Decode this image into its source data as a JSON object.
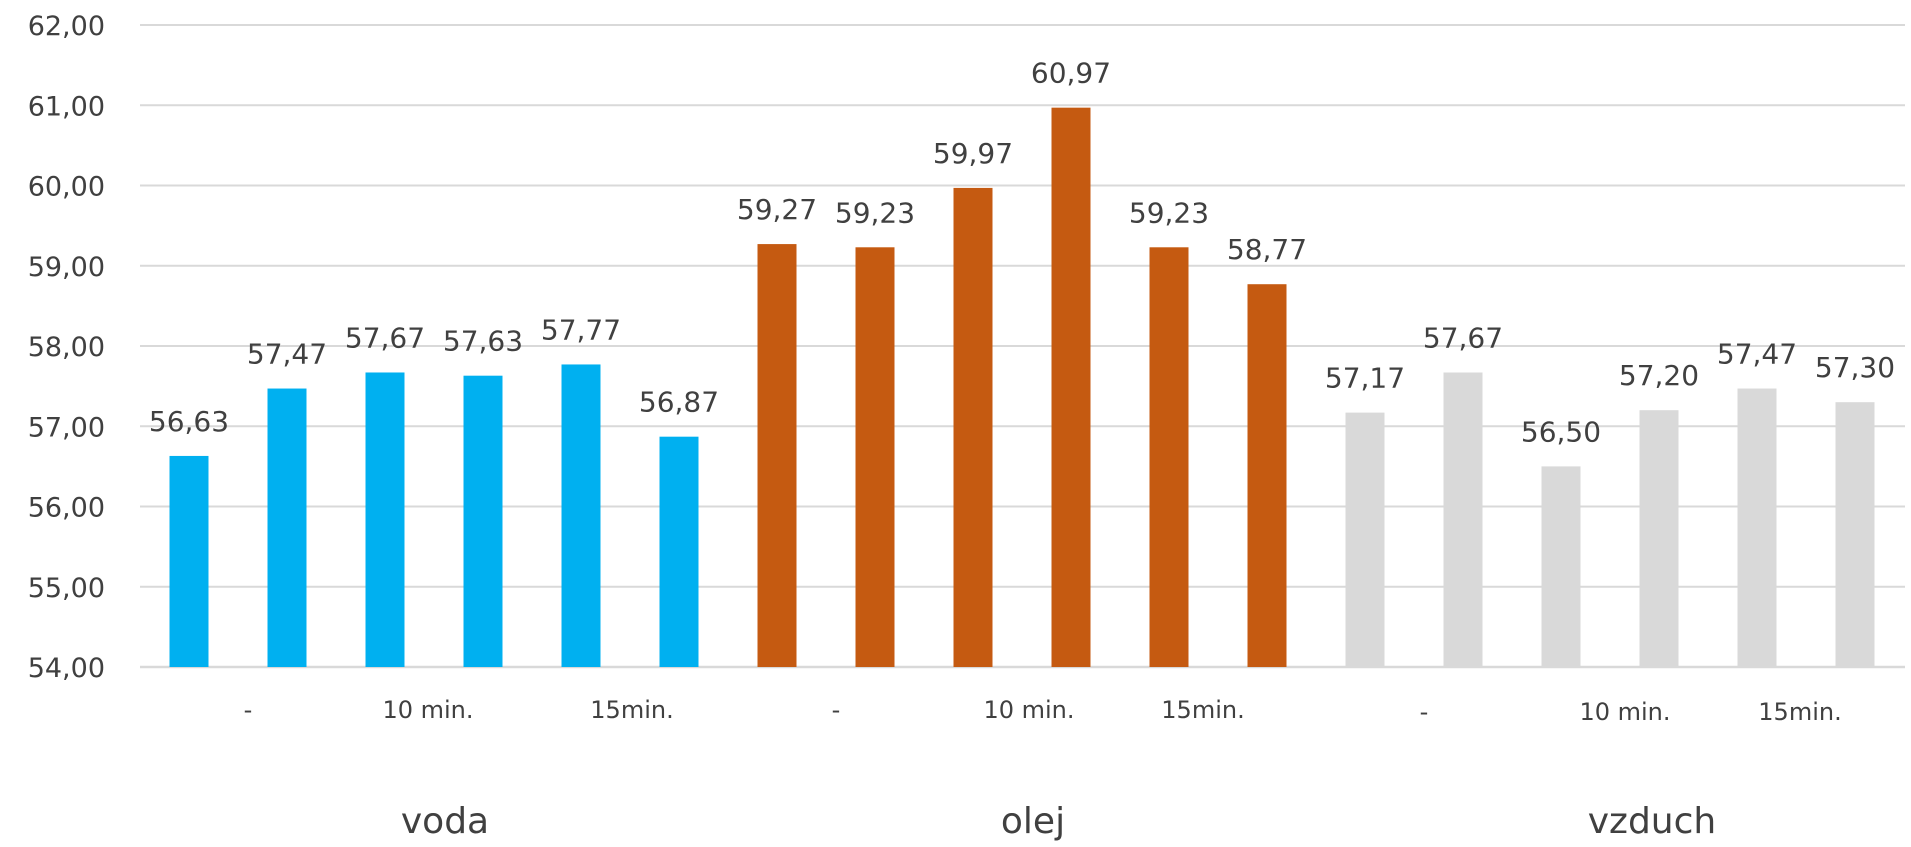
{
  "chart_data": {
    "type": "bar",
    "title": "",
    "xlabel": "",
    "ylabel": "",
    "ylim": [
      54,
      62
    ],
    "y_ticks": [
      "54,00",
      "55,00",
      "56,00",
      "57,00",
      "58,00",
      "59,00",
      "60,00",
      "61,00",
      "62,00"
    ],
    "grid": true,
    "legend": "none",
    "groups": [
      {
        "name": "voda",
        "color": "#00B0F0",
        "sublabels": [
          "-",
          "10 min.",
          "15min."
        ],
        "values": [
          56.63,
          57.47,
          57.67,
          57.63,
          57.77,
          56.87
        ],
        "value_labels": [
          "56,63",
          "57,47",
          "57,67",
          "57,63",
          "57,77",
          "56,87"
        ]
      },
      {
        "name": "olej",
        "color": "#C55A11",
        "sublabels": [
          "-",
          "10 min.",
          "15min."
        ],
        "values": [
          59.27,
          59.23,
          59.97,
          60.97,
          59.23,
          58.77
        ],
        "value_labels": [
          "59,27",
          "59,23",
          "59,97",
          "60,97",
          "59,23",
          "58,77"
        ]
      },
      {
        "name": "vzduch",
        "color": "#D9D9D9",
        "sublabels": [
          "-",
          "10 min.",
          "15min."
        ],
        "values": [
          57.17,
          57.67,
          56.5,
          57.2,
          57.47,
          57.3
        ],
        "value_labels": [
          "57,17",
          "57,67",
          "56,50",
          "57,20",
          "57,47",
          "57,30"
        ]
      }
    ],
    "grid_color": "#D9D9D9"
  }
}
